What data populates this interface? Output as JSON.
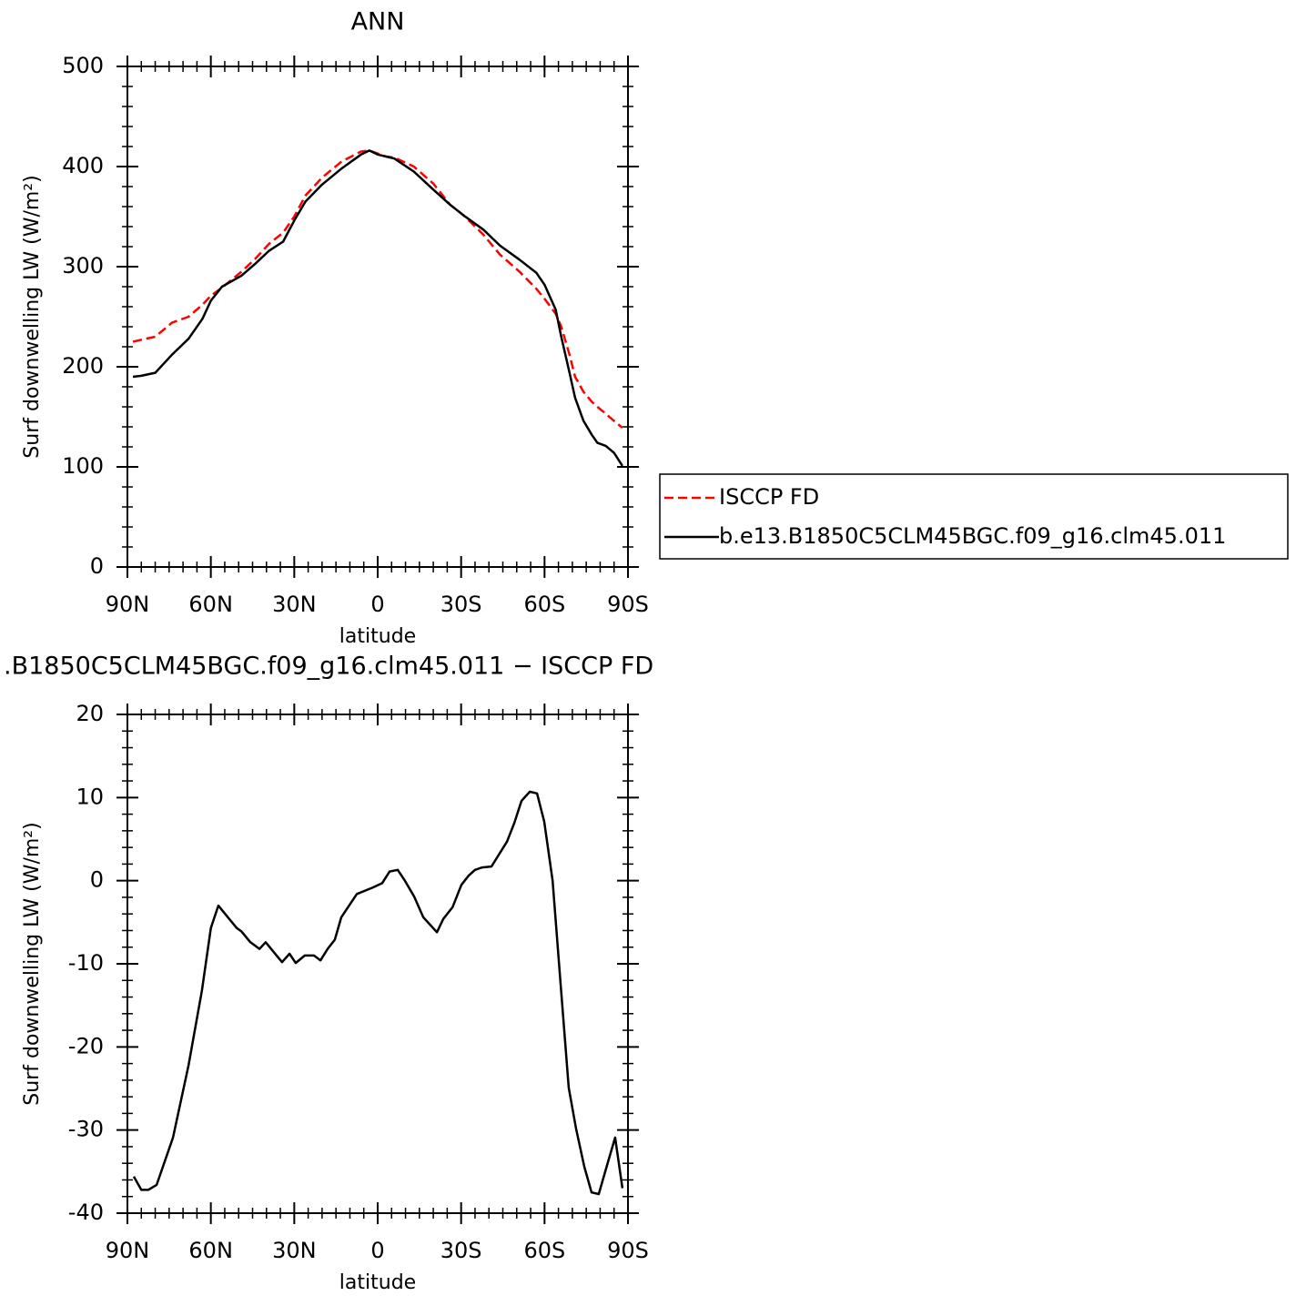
{
  "chart_data": [
    {
      "type": "line",
      "title": "ANN",
      "x_label": "latitude",
      "y_label": "Surf downwelling LW (W/m²)",
      "x": [
        88,
        85,
        80,
        74,
        68,
        63,
        60,
        56,
        49,
        44,
        39,
        34,
        30,
        26,
        20,
        13,
        6,
        3,
        0,
        -3,
        -6,
        -13,
        -20,
        -26,
        -31,
        -38,
        -44,
        -51,
        -57,
        -60,
        -64,
        -66,
        -69,
        -71,
        -74,
        -77,
        -79,
        -82,
        -85,
        -88
      ],
      "series": [
        {
          "name": "ISCCP FD",
          "color": "#ff0000",
          "dashed": true,
          "values": [
            225,
            227,
            230,
            244,
            250,
            262,
            271,
            279,
            295,
            308,
            323,
            334,
            350,
            371,
            389,
            405,
            415,
            416,
            413,
            410,
            409,
            400,
            383,
            362,
            351,
            332,
            312,
            295,
            278,
            268,
            253,
            240,
            212,
            190,
            175,
            165,
            160,
            153,
            146,
            139
          ]
        },
        {
          "name": "b.e13.B1850C5CLM45BGC.f09_g16.clm45.011",
          "color": "#000000",
          "dashed": false,
          "values": [
            190,
            191,
            194,
            212,
            228,
            248,
            266,
            280,
            291,
            303,
            316,
            325,
            346,
            365,
            382,
            398,
            412,
            416,
            412,
            410,
            408,
            395,
            377,
            362,
            351,
            337,
            321,
            307,
            294,
            282,
            257,
            230,
            194,
            169,
            146,
            132,
            124,
            121,
            114,
            101
          ]
        }
      ],
      "xlim": [
        90,
        -90
      ],
      "xticks": [
        {
          "value": 90,
          "label": "90N"
        },
        {
          "value": 60,
          "label": "60N"
        },
        {
          "value": 30,
          "label": "30N"
        },
        0,
        {
          "value": -30,
          "label": "30S"
        },
        {
          "value": -60,
          "label": "60S"
        },
        {
          "value": -90,
          "label": "90S"
        }
      ],
      "ylim": [
        0,
        500
      ],
      "yticks": [
        0,
        100,
        200,
        300,
        400,
        500
      ]
    },
    {
      "type": "line",
      "title": ".B1850C5CLM45BGC.f09_g16.clm45.011 − ISCCP FD",
      "x_label": "latitude",
      "y_label": "Surf downwelling LW (W/m²)",
      "x": [
        87.7,
        85,
        82.5,
        79.5,
        73.6,
        68,
        63.2,
        60,
        57.3,
        50.7,
        49,
        45.8,
        42.5,
        40.3,
        34.4,
        31.7,
        29.5,
        26.2,
        22.9,
        20.6,
        18,
        15.4,
        13.1,
        7.5,
        1.6,
        -1.6,
        -4.3,
        -7.2,
        -9.8,
        -13.1,
        -16.4,
        -21.3,
        -23.6,
        -26.9,
        -30.1,
        -32.7,
        -35,
        -37.6,
        -40.9,
        -46.5,
        -49.1,
        -51.7,
        -54.7,
        -57.3,
        -59.9,
        -62.9,
        -65.8,
        -68.7,
        -71.3,
        -74.3,
        -76.9,
        -79.5,
        -82.5,
        -85.4,
        -88
      ],
      "values": [
        -35.6,
        -37.2,
        -37.2,
        -36.6,
        -30.9,
        -22.2,
        -13.2,
        -5.7,
        -3.0,
        -5.7,
        -6.1,
        -7.4,
        -8.2,
        -7.4,
        -9.8,
        -8.8,
        -9.9,
        -9.0,
        -9.0,
        -9.6,
        -8.2,
        -7.1,
        -4.4,
        -1.6,
        -0.8,
        -0.3,
        1.1,
        1.3,
        0,
        -1.9,
        -4.4,
        -6.2,
        -4.6,
        -3.2,
        -0.5,
        0.6,
        1.3,
        1.6,
        1.7,
        4.7,
        6.9,
        9.6,
        10.7,
        10.5,
        7.1,
        0,
        -12.6,
        -24.9,
        -29.8,
        -34.4,
        -37.5,
        -37.7,
        -34.2,
        -30.9,
        -37
      ],
      "color": "#000000",
      "xlim": [
        90,
        -90
      ],
      "xticks": [
        {
          "value": 90,
          "label": "90N"
        },
        {
          "value": 60,
          "label": "60N"
        },
        {
          "value": 30,
          "label": "30N"
        },
        0,
        {
          "value": -30,
          "label": "30S"
        },
        {
          "value": -60,
          "label": "60S"
        },
        {
          "value": -90,
          "label": "90S"
        }
      ],
      "ylim": [
        -40,
        20
      ],
      "yticks": [
        -40,
        -30,
        -20,
        -10,
        0,
        10,
        20
      ]
    }
  ]
}
